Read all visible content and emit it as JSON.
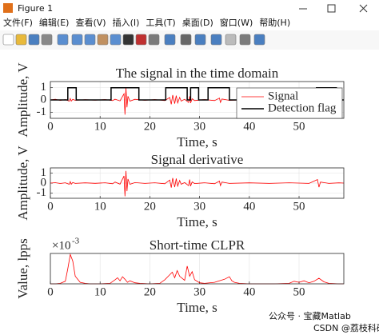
{
  "window": {
    "title": "Figure 1",
    "menu": [
      "文件(F)",
      "编辑(E)",
      "查看(V)",
      "插入(I)",
      "工具(T)",
      "桌面(D)",
      "窗口(W)",
      "帮助(H)"
    ]
  },
  "watermark": {
    "account": "公众号 · 宝藏Matlab",
    "source": "CSDN @荔枝科研社"
  },
  "chart_data": [
    {
      "type": "line",
      "title": "The signal in the time domain",
      "xlabel": "Time, s",
      "ylabel": "Amplitude, V",
      "xlim": [
        0,
        59
      ],
      "ylim": [
        -1.5,
        1.5
      ],
      "xticks": [
        0,
        10,
        20,
        30,
        40,
        50
      ],
      "yticks": [
        -1,
        0,
        1
      ],
      "grid": true,
      "legend": "upper right",
      "series": [
        {
          "name": "Signal",
          "color": "#ff0000",
          "x": [
            0,
            1,
            2,
            3,
            3.8,
            4.0,
            4.2,
            4.5,
            5,
            7,
            9,
            11,
            12.5,
            13,
            14,
            14.8,
            15.0,
            15.2,
            15.4,
            15.6,
            16,
            17,
            19,
            21,
            23,
            24,
            24.3,
            24.6,
            25,
            25.3,
            25.6,
            26,
            26.3,
            27,
            27.8,
            28,
            28.2,
            28.5,
            29,
            31,
            33,
            34,
            34.2,
            34.5,
            36,
            40,
            44,
            48,
            52,
            53.7,
            54,
            54.3,
            56,
            58,
            59
          ],
          "values": [
            0,
            0.05,
            -0.04,
            0.03,
            -0.1,
            0.12,
            -0.1,
            0.05,
            -0.03,
            0.02,
            -0.02,
            0.03,
            -0.05,
            0.06,
            -0.08,
            0.5,
            -1.2,
            1.0,
            -0.6,
            0.3,
            -0.1,
            0.05,
            -0.03,
            0.03,
            -0.05,
            0.2,
            -0.35,
            0.4,
            -0.3,
            0.35,
            -0.25,
            0.2,
            -0.1,
            0.05,
            -0.2,
            0.3,
            -0.25,
            0.1,
            -0.05,
            0.03,
            -0.05,
            0.15,
            -0.2,
            0.08,
            -0.03,
            0.02,
            -0.03,
            0.03,
            -0.03,
            0.1,
            -0.12,
            0.08,
            -0.03,
            0.02,
            0
          ]
        },
        {
          "name": "Detection flag",
          "color": "#000000",
          "x": [
            0,
            3.5,
            3.5,
            5.2,
            5.2,
            12.2,
            12.2,
            17.8,
            17.8,
            23.2,
            23.2,
            27.5,
            27.5,
            28.2,
            28.2,
            29.8,
            29.8,
            31.7,
            31.7,
            36,
            36,
            53.5,
            53.5,
            57.5,
            57.5,
            59
          ],
          "values": [
            0,
            0,
            1,
            1,
            0,
            0,
            1,
            1,
            0,
            0,
            1,
            1,
            0,
            0,
            1,
            1,
            0,
            0,
            1,
            1,
            0,
            0,
            1,
            1,
            0,
            0
          ]
        }
      ]
    },
    {
      "type": "line",
      "title": "Signal derivative",
      "xlabel": "Time, s",
      "ylabel": "Amplitude, V",
      "xlim": [
        0,
        59
      ],
      "ylim": [
        -1.5,
        1.5
      ],
      "xticks": [
        0,
        10,
        20,
        30,
        40,
        50
      ],
      "yticks": [
        -1,
        0,
        1
      ],
      "grid": true,
      "series": [
        {
          "color": "#ff0000",
          "x": [
            0,
            1,
            2,
            3,
            3.8,
            4.0,
            4.2,
            4.5,
            5,
            7,
            9,
            11,
            12.5,
            13,
            14,
            14.8,
            15.0,
            15.2,
            15.4,
            15.6,
            16,
            17,
            19,
            21,
            23,
            24,
            24.3,
            24.6,
            25,
            25.3,
            25.6,
            26,
            26.3,
            27,
            27.8,
            28,
            28.2,
            28.5,
            29,
            31,
            33,
            34,
            34.2,
            34.5,
            36,
            40,
            44,
            48,
            52,
            53.7,
            54,
            54.3,
            56,
            58,
            59
          ],
          "values": [
            0,
            0.04,
            -0.04,
            0.03,
            -0.12,
            0.15,
            -0.12,
            0.06,
            -0.03,
            0.02,
            -0.02,
            0.03,
            -0.06,
            0.1,
            -0.1,
            0.7,
            -1.3,
            1.2,
            -0.8,
            0.4,
            -0.12,
            0.05,
            -0.03,
            0.03,
            -0.06,
            0.3,
            -0.45,
            0.5,
            -0.4,
            0.45,
            -0.3,
            0.25,
            -0.12,
            0.05,
            -0.25,
            0.35,
            -0.3,
            0.12,
            -0.05,
            0.03,
            -0.06,
            0.2,
            -0.25,
            0.1,
            -0.03,
            0.02,
            -0.03,
            0.03,
            -0.03,
            0.35,
            -0.4,
            0.1,
            -0.03,
            0.02,
            0
          ]
        }
      ]
    },
    {
      "type": "line",
      "title": "Short-time CLPR",
      "xlabel": "Time, s",
      "ylabel": "Value, lpps",
      "exponent_label": "×10",
      "exponent": "-3",
      "xlim": [
        0,
        59
      ],
      "ylim": [
        0,
        6
      ],
      "xticks": [
        0,
        10,
        20,
        30,
        40,
        50
      ],
      "grid": true,
      "series": [
        {
          "color": "#ff0000",
          "x": [
            0,
            1,
            2,
            3,
            3.5,
            4,
            4.5,
            5,
            6,
            7,
            8,
            10,
            12,
            13,
            13.5,
            14,
            14.5,
            15,
            15.5,
            16,
            17,
            18,
            20,
            22,
            23,
            24,
            24.5,
            25,
            25.5,
            26,
            27,
            27.5,
            28,
            28.5,
            29,
            30,
            31,
            33,
            35,
            36,
            36.5,
            37,
            38,
            40,
            45,
            48,
            49,
            50,
            51,
            52,
            53,
            54,
            55,
            56,
            58,
            59
          ],
          "values": [
            0,
            0,
            0.1,
            0.5,
            3,
            5.8,
            4.5,
            1.5,
            0.3,
            0.1,
            0,
            0,
            0.1,
            0.8,
            1.2,
            0.6,
            1.4,
            0.9,
            0.3,
            0.6,
            0.2,
            0.1,
            0,
            0.1,
            0.8,
            1.8,
            2.3,
            1.2,
            2.6,
            1.5,
            0.7,
            3.5,
            1.5,
            2.4,
            0.8,
            0.2,
            0.1,
            0.3,
            0.9,
            1.4,
            0.6,
            0.3,
            0.1,
            0,
            0,
            0.1,
            0.5,
            0.3,
            0.6,
            0.2,
            0.5,
            1.1,
            0.4,
            0.1,
            0,
            0
          ]
        }
      ]
    }
  ]
}
